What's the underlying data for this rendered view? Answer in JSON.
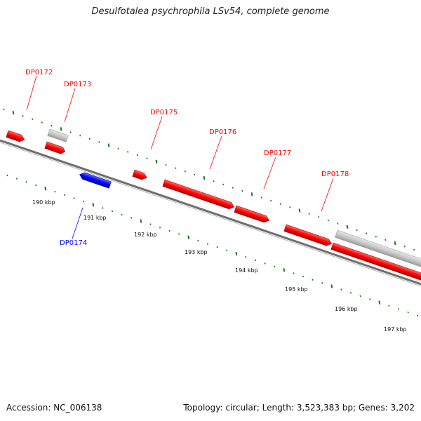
{
  "title": "Desulfotalea psychrophila LSv54, complete genome",
  "footer": {
    "accession": "Accession: NC_006138",
    "summary": "Topology: circular; Length: 3,523,383 bp; Genes: 3,202"
  },
  "colors": {
    "forward": "#ff0000",
    "reverse": "#0000ff",
    "other": "#c8c8c8",
    "ticks": "#1a7a1a",
    "backbone": "#808080"
  },
  "genes": [
    {
      "id": "g-dp0172",
      "label": "DP0172",
      "strand": "forward"
    },
    {
      "id": "g-dp0173",
      "label": "DP0173",
      "strand": "forward"
    },
    {
      "id": "g-dp0174",
      "label": "DP0174",
      "strand": "reverse"
    },
    {
      "id": "g-dp0175",
      "label": "DP0175",
      "strand": "forward"
    },
    {
      "id": "g-dp0176",
      "label": "DP0176",
      "strand": "forward"
    },
    {
      "id": "g-dp0177",
      "label": "DP0177",
      "strand": "forward"
    },
    {
      "id": "g-dp0178",
      "label": "DP0178",
      "strand": "forward"
    }
  ],
  "kbp_labels": [
    "190 kbp",
    "191 kbp",
    "192 kbp",
    "193 kbp",
    "194 kbp",
    "195 kbp",
    "196 kbp",
    "197 kbp"
  ]
}
